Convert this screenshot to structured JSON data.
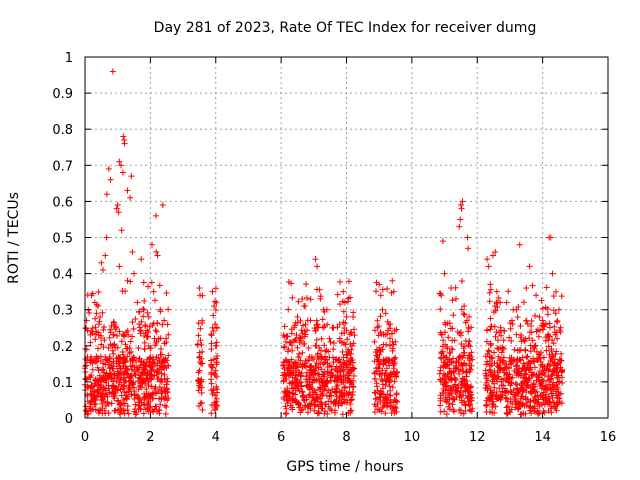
{
  "chart_data": {
    "type": "scatter",
    "title": "Day 281 of 2023, Rate Of TEC Index for receiver dumg",
    "xlabel": "GPS time / hours",
    "ylabel": "ROTI / TECUs",
    "xlim": [
      0,
      16
    ],
    "ylim": [
      0,
      1
    ],
    "xticks": [
      0,
      2,
      4,
      6,
      8,
      10,
      12,
      14,
      16
    ],
    "yticks": [
      0,
      0.1,
      0.2,
      0.3,
      0.4,
      0.5,
      0.6,
      0.7,
      0.8,
      0.9,
      1
    ],
    "xtick_labels": [
      "0",
      "2",
      "4",
      "6",
      "8",
      "10",
      "12",
      "14",
      "16"
    ],
    "ytick_labels": [
      "0",
      "0.1",
      "0.2",
      "0.3",
      "0.4",
      "0.5",
      "0.6",
      "0.7",
      "0.8",
      "0.9",
      "1"
    ],
    "grid": true,
    "marker": "+",
    "color": "#ff0000",
    "series": [
      {
        "x": [
          0.85,
          1.17,
          1.2,
          1.21,
          1.05,
          1.1,
          0.73,
          1.16,
          0.78,
          1.42,
          1.3,
          1.0,
          1.38,
          0.97,
          1.03,
          2.38,
          2.17,
          0.67,
          0.66,
          1.12,
          2.05,
          2.18,
          2.22,
          1.45,
          1.72,
          11.55,
          11.5,
          11.52,
          11.48,
          11.7,
          11.45,
          10.95,
          11.72,
          14.25,
          14.2,
          13.3,
          7.05,
          12.48,
          12.55,
          7.1,
          12.3,
          13.6,
          0.5,
          0.55,
          0.62,
          1.05,
          1.3,
          1.5,
          0.2,
          0.3,
          0.1,
          2.3,
          2.42,
          2.48,
          3.5,
          3.52,
          3.9,
          3.95,
          3.98,
          4.0,
          3.55,
          6.3,
          6.5,
          6.7,
          7.2,
          7.4,
          7.6,
          7.9,
          7.95,
          8.0,
          9.0,
          9.05,
          9.1,
          9.4,
          9.45,
          10.9,
          11.0,
          11.2,
          11.35,
          11.6,
          11.75,
          12.35,
          12.4,
          12.6,
          12.9,
          13.1,
          13.5,
          13.8,
          14.0,
          14.3,
          14.5,
          14.55,
          1.8,
          1.95,
          0.05,
          0.35,
          0.4,
          0.9,
          1.6,
          2.1,
          6.4,
          6.9,
          7.3,
          8.2,
          9.2,
          9.3,
          12.7,
          13.2,
          13.9,
          14.1,
          14.4
        ],
        "y": [
          0.96,
          0.78,
          0.77,
          0.76,
          0.71,
          0.7,
          0.69,
          0.68,
          0.66,
          0.67,
          0.63,
          0.59,
          0.61,
          0.58,
          0.57,
          0.59,
          0.56,
          0.62,
          0.5,
          0.52,
          0.48,
          0.46,
          0.45,
          0.46,
          0.44,
          0.6,
          0.59,
          0.58,
          0.55,
          0.5,
          0.53,
          0.49,
          0.47,
          0.5,
          0.5,
          0.48,
          0.44,
          0.45,
          0.46,
          0.42,
          0.44,
          0.42,
          0.43,
          0.41,
          0.45,
          0.42,
          0.38,
          0.4,
          0.34,
          0.32,
          0.3,
          0.3,
          0.27,
          0.22,
          0.36,
          0.34,
          0.35,
          0.31,
          0.26,
          0.2,
          0.15,
          0.21,
          0.28,
          0.31,
          0.33,
          0.3,
          0.25,
          0.35,
          0.32,
          0.28,
          0.37,
          0.34,
          0.3,
          0.38,
          0.35,
          0.34,
          0.4,
          0.36,
          0.33,
          0.31,
          0.28,
          0.42,
          0.37,
          0.35,
          0.32,
          0.3,
          0.36,
          0.34,
          0.27,
          0.4,
          0.3,
          0.25,
          0.3,
          0.28,
          0.27,
          0.29,
          0.31,
          0.26,
          0.32,
          0.35,
          0.25,
          0.27,
          0.3,
          0.28,
          0.29,
          0.26,
          0.32,
          0.3,
          0.28,
          0.26,
          0.29
        ]
      }
    ],
    "coverage": [
      [
        0.0,
        2.55
      ],
      [
        3.45,
        3.6
      ],
      [
        3.85,
        4.05
      ],
      [
        6.05,
        8.25
      ],
      [
        8.85,
        9.55
      ],
      [
        10.85,
        11.85
      ],
      [
        12.25,
        14.6
      ]
    ]
  }
}
